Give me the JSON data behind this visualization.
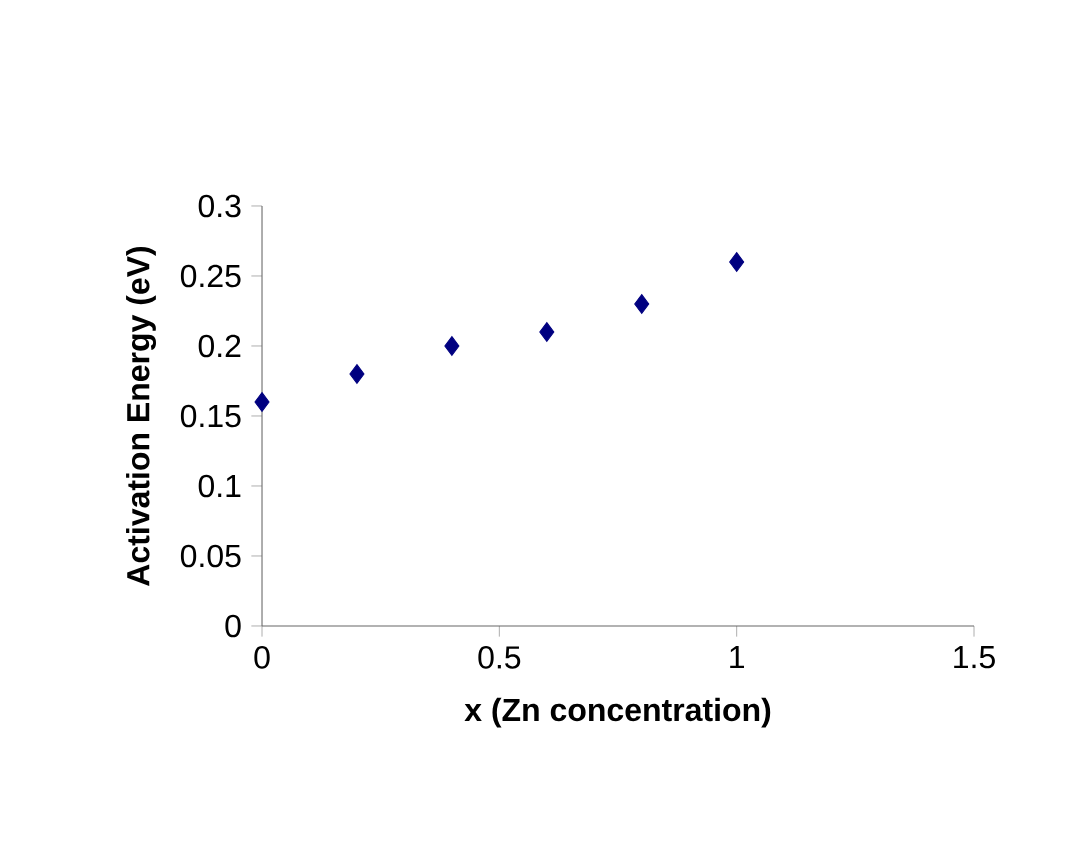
{
  "chart_data": {
    "type": "scatter",
    "xlabel": "x (Zn concentration)",
    "ylabel": "Activation Energy (eV)",
    "x": [
      0,
      0.2,
      0.4,
      0.6,
      0.8,
      1
    ],
    "values": [
      0.16,
      0.18,
      0.2,
      0.21,
      0.23,
      0.26
    ],
    "color": "#000080",
    "marker": "diamond",
    "xlim": [
      0,
      1.5
    ],
    "ylim": [
      0,
      0.3
    ],
    "xticks": [
      0,
      0.5,
      1,
      1.5
    ],
    "yticks": [
      0,
      0.05,
      0.1,
      0.15,
      0.2,
      0.25,
      0.3
    ]
  }
}
